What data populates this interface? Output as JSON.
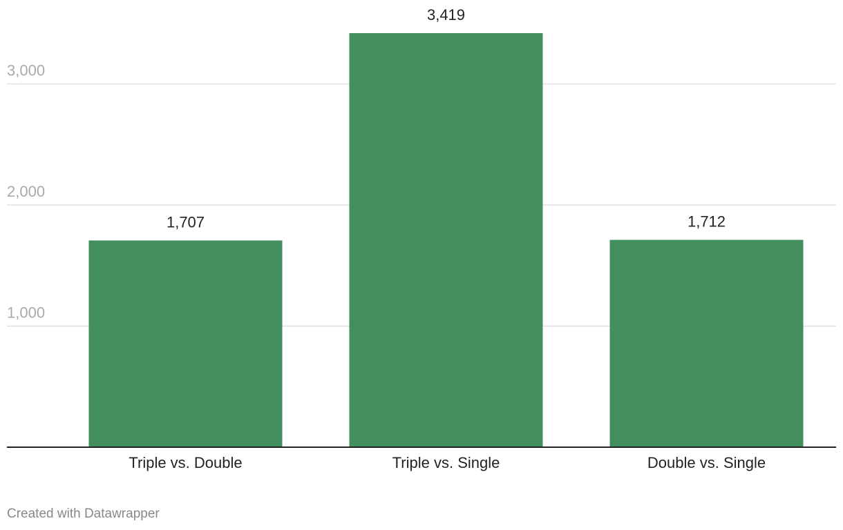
{
  "chart_data": {
    "type": "bar",
    "categories": [
      "Triple vs. Double",
      "Triple vs. Single",
      "Double vs. Single"
    ],
    "values": [
      1707,
      3419,
      1712
    ],
    "value_labels": [
      "1,707",
      "3,419",
      "1,712"
    ],
    "color": "#438e5e",
    "ylim": [
      0,
      3419
    ],
    "yticks": [
      {
        "value": 1000,
        "label": "1,000"
      },
      {
        "value": 2000,
        "label": "2,000"
      },
      {
        "value": 3000,
        "label": "3,000"
      }
    ],
    "grid": true,
    "footer": "Created with Datawrapper"
  }
}
